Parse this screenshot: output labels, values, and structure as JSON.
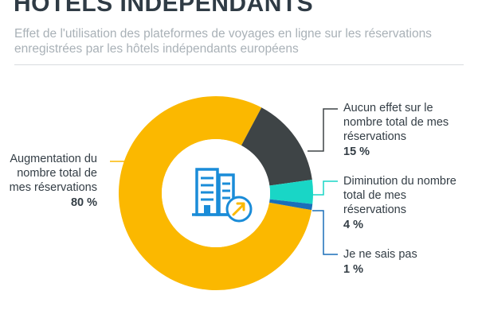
{
  "title": "HÔTELS INDÉPENDANTS",
  "subtitle": "Effet de l'utilisation des plateformes de voyages en ligne sur les réservations enregistrées par les hôtels indépendants européens",
  "colors": {
    "augmentation": "#fbb800",
    "aucun_effet": "#3e4446",
    "diminution": "#19d6c6",
    "ne_sais_pas": "#1a6fb8",
    "icon": "#1a8cd8"
  },
  "icons": [
    "hotel-buildings-icon",
    "trend-up-arrow-icon"
  ],
  "chart_data": {
    "type": "pie",
    "style": "donut",
    "title": "HÔTELS INDÉPENDANTS",
    "subtitle": "Effet de l'utilisation des plateformes de voyages en ligne sur les réservations enregistrées par les hôtels indépendants européens",
    "categories": [
      "Augmentation du nombre total de mes réservations",
      "Aucun effet sur le nombre total de mes réservations",
      "Diminution du nombre total de mes réservations",
      "Je ne sais pas"
    ],
    "values": [
      80,
      15,
      4,
      1
    ],
    "value_labels": [
      "80 %",
      "15 %",
      "4 %",
      "1 %"
    ],
    "unit": "%",
    "colors": [
      "#fbb800",
      "#3e4446",
      "#19d6c6",
      "#1a6fb8"
    ]
  }
}
